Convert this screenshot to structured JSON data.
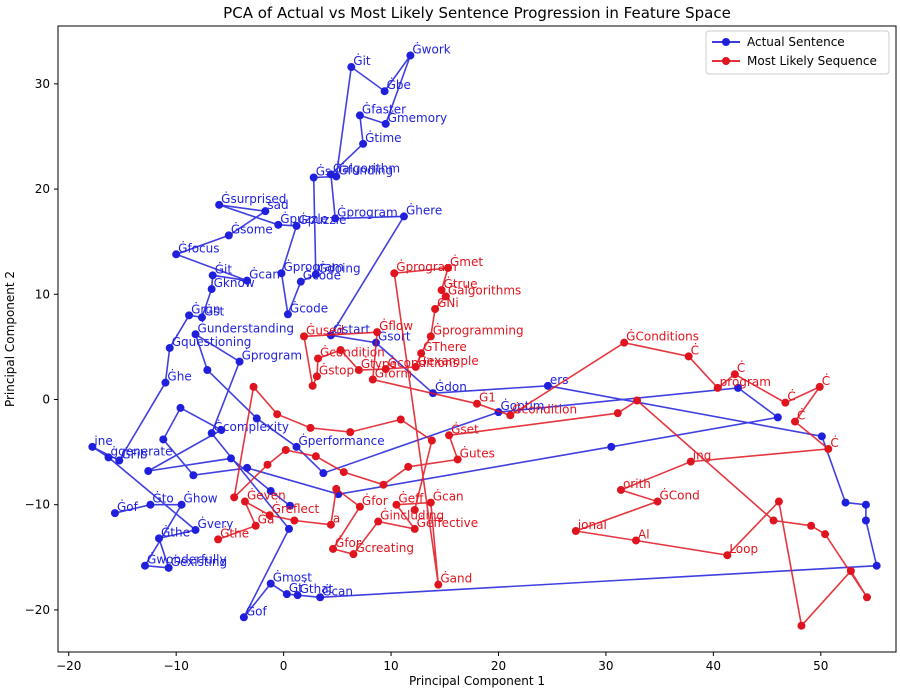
{
  "chart_data": {
    "type": "line",
    "title": "PCA of Actual vs Most Likely Sentence Progression in Feature Space",
    "xlabel": "Principal Component 1",
    "ylabel": "Principal Component 2",
    "xlim": [
      -21,
      57
    ],
    "ylim": [
      -24,
      35.5
    ],
    "xticks": [
      -20,
      -10,
      0,
      10,
      20,
      30,
      40,
      50
    ],
    "yticks": [
      -20,
      -10,
      0,
      10,
      20,
      30
    ],
    "grid": false,
    "legend_position": "top-right",
    "series": [
      {
        "name": "Actual Sentence",
        "color": "#1f1fdc",
        "points": [
          {
            "x": -15.7,
            "y": -10.8,
            "label": "Ġof"
          },
          {
            "x": -12.4,
            "y": -10.0,
            "label": "Ġto"
          },
          {
            "x": -9.5,
            "y": -10.0,
            "label": "Ġhow"
          },
          {
            "x": -12.9,
            "y": -15.8,
            "label": "Ġwonderfully"
          },
          {
            "x": -10.7,
            "y": -16.0,
            "label": "Ġexisting"
          },
          {
            "x": -11.6,
            "y": -13.2,
            "label": "Ġthe"
          },
          {
            "x": -8.2,
            "y": -12.4,
            "label": "Ġvery"
          },
          {
            "x": -16.3,
            "y": -5.5,
            "label": "ġgenerate"
          },
          {
            "x": -17.8,
            "y": -4.5,
            "label": "ine"
          },
          {
            "x": -15.3,
            "y": -5.8,
            "label": "ĠFib"
          },
          {
            "x": -11.0,
            "y": 1.6,
            "label": "Ġhe"
          },
          {
            "x": -10.6,
            "y": 4.9,
            "label": "Ġquestioning"
          },
          {
            "x": -8.8,
            "y": 8.0,
            "label": "Ġrun"
          },
          {
            "x": -7.6,
            "y": 7.8,
            "label": "Ġst"
          },
          {
            "x": -6.7,
            "y": 10.5,
            "label": "Ġknow"
          },
          {
            "x": -6.6,
            "y": 11.8,
            "label": "Ġit"
          },
          {
            "x": -3.4,
            "y": 11.3,
            "label": "Ġcan"
          },
          {
            "x": -10.0,
            "y": 13.8,
            "label": "Ġfocus"
          },
          {
            "x": -5.1,
            "y": 15.6,
            "label": "Ġsome"
          },
          {
            "x": -1.7,
            "y": 17.9,
            "label": "sad"
          },
          {
            "x": -6.0,
            "y": 18.5,
            "label": "Ġsurprised"
          },
          {
            "x": -0.5,
            "y": 16.6,
            "label": "Ġpuzzle"
          },
          {
            "x": 1.2,
            "y": 16.5,
            "label": "Ġpuzzle"
          },
          {
            "x": -0.2,
            "y": 12.0,
            "label": "Ġprogram"
          },
          {
            "x": 0.4,
            "y": 8.1,
            "label": "Ġcode"
          },
          {
            "x": 1.6,
            "y": 11.2,
            "label": "Ġcode"
          },
          {
            "x": 3.0,
            "y": 11.9,
            "label": "Ġdoing"
          },
          {
            "x": 2.8,
            "y": 21.1,
            "label": "Ġs"
          },
          {
            "x": 4.9,
            "y": 21.2,
            "label": "Ġfunding"
          },
          {
            "x": 6.3,
            "y": 31.6,
            "label": "Ġit"
          },
          {
            "x": 9.4,
            "y": 29.3,
            "label": "Ġbe"
          },
          {
            "x": 11.8,
            "y": 32.7,
            "label": "Ġwork"
          },
          {
            "x": 9.5,
            "y": 26.2,
            "label": "Ġmemory"
          },
          {
            "x": 7.1,
            "y": 27.0,
            "label": "Ġfaster"
          },
          {
            "x": 7.4,
            "y": 24.3,
            "label": "Ġtime"
          },
          {
            "x": 4.4,
            "y": 21.4,
            "label": "Ġalgorithm"
          },
          {
            "x": 4.8,
            "y": 17.2,
            "label": "Ġprogram"
          },
          {
            "x": 11.2,
            "y": 17.4,
            "label": "Ġhere"
          },
          {
            "x": 4.4,
            "y": 6.1,
            "label": "Ġstart"
          },
          {
            "x": 8.6,
            "y": 5.4,
            "label": "Ġsort"
          },
          {
            "x": 13.9,
            "y": 0.6,
            "label": "Ġdon"
          },
          {
            "x": 24.6,
            "y": 1.3,
            "label": "ers"
          },
          {
            "x": 50.1,
            "y": -3.5,
            "label": ""
          },
          {
            "x": 52.3,
            "y": -9.8,
            "label": ""
          },
          {
            "x": 54.2,
            "y": -10.0,
            "label": ""
          },
          {
            "x": 54.2,
            "y": -11.5,
            "label": ""
          },
          {
            "x": 55.2,
            "y": -15.8,
            "label": ""
          },
          {
            "x": 3.4,
            "y": -18.8,
            "label": "Ġcan"
          },
          {
            "x": 1.3,
            "y": -18.6,
            "label": "Ġthat"
          },
          {
            "x": 0.3,
            "y": -18.5,
            "label": "Ġt"
          },
          {
            "x": -1.2,
            "y": -17.5,
            "label": "Ġmost"
          },
          {
            "x": -3.7,
            "y": -20.7,
            "label": "Ġof"
          },
          {
            "x": 0.5,
            "y": -12.3,
            "label": ""
          },
          {
            "x": -6.7,
            "y": -3.2,
            "label": "Ġcomplexity"
          },
          {
            "x": -4.1,
            "y": 3.6,
            "label": "Ġprogram"
          },
          {
            "x": -8.2,
            "y": 6.2,
            "label": "Ġunderstanding"
          },
          {
            "x": -7.1,
            "y": 2.8,
            "label": ""
          },
          {
            "x": -2.5,
            "y": -1.8,
            "label": ""
          },
          {
            "x": 1.2,
            "y": -4.5,
            "label": "Ġperformance"
          },
          {
            "x": 3.7,
            "y": -7.0,
            "label": ""
          },
          {
            "x": 20.0,
            "y": -1.2,
            "label": "Ġoptim"
          },
          {
            "x": 42.3,
            "y": 1.1,
            "label": ""
          },
          {
            "x": 46.0,
            "y": -1.7,
            "label": ""
          },
          {
            "x": 30.5,
            "y": -4.5,
            "label": ""
          },
          {
            "x": 5.1,
            "y": -9.0,
            "label": ""
          },
          {
            "x": -3.4,
            "y": -6.5,
            "label": ""
          },
          {
            "x": -8.4,
            "y": -7.2,
            "label": ""
          },
          {
            "x": -11.2,
            "y": -3.8,
            "label": ""
          },
          {
            "x": -9.6,
            "y": -0.8,
            "label": ""
          },
          {
            "x": -5.8,
            "y": -2.9,
            "label": ""
          },
          {
            "x": -12.6,
            "y": -6.8,
            "label": ""
          },
          {
            "x": -4.9,
            "y": -5.6,
            "label": ""
          },
          {
            "x": -1.2,
            "y": -8.7,
            "label": ""
          },
          {
            "x": 0.6,
            "y": -10.1,
            "label": ""
          }
        ]
      },
      {
        "name": "Most Likely Sequence",
        "color": "#e0141e",
        "points": [
          {
            "x": -6.1,
            "y": -13.3,
            "label": "Ġthe"
          },
          {
            "x": -2.6,
            "y": -12.0,
            "label": "Ġa"
          },
          {
            "x": -3.6,
            "y": -9.7,
            "label": "Ġeven"
          },
          {
            "x": -1.3,
            "y": -11.0,
            "label": "Ġreflect"
          },
          {
            "x": 1.0,
            "y": -11.5,
            "label": ""
          },
          {
            "x": 4.4,
            "y": -11.9,
            "label": "a"
          },
          {
            "x": 4.9,
            "y": -8.5,
            "label": ""
          },
          {
            "x": 7.1,
            "y": -10.2,
            "label": "Ġfor"
          },
          {
            "x": 4.6,
            "y": -14.2,
            "label": "Ġfor"
          },
          {
            "x": 6.5,
            "y": -14.7,
            "label": "Ġcreating"
          },
          {
            "x": 8.8,
            "y": -11.6,
            "label": "Ġincluding"
          },
          {
            "x": 12.2,
            "y": -12.3,
            "label": "Ġeffective"
          },
          {
            "x": 10.5,
            "y": -10.0,
            "label": "Ġeff"
          },
          {
            "x": 13.7,
            "y": -9.8,
            "label": "Ġcan"
          },
          {
            "x": 14.4,
            "y": -17.6,
            "label": "Ġand"
          },
          {
            "x": 10.3,
            "y": 12.0,
            "label": "Ġprogram"
          },
          {
            "x": 15.3,
            "y": 12.5,
            "label": "Ġmet"
          },
          {
            "x": 14.7,
            "y": 10.4,
            "label": "Ġtrue"
          },
          {
            "x": 15.1,
            "y": 9.8,
            "label": "Ġalgorithms"
          },
          {
            "x": 14.1,
            "y": 8.6,
            "label": "ĠNi"
          },
          {
            "x": 13.7,
            "y": 6.0,
            "label": "Ġprogramming"
          },
          {
            "x": 12.8,
            "y": 4.4,
            "label": "ĠThere"
          },
          {
            "x": 12.3,
            "y": 3.1,
            "label": "Ġexample"
          },
          {
            "x": 9.5,
            "y": 2.9,
            "label": "Ġconditions"
          },
          {
            "x": 7.0,
            "y": 2.8,
            "label": "Ġtype"
          },
          {
            "x": 5.3,
            "y": 4.7,
            "label": ""
          },
          {
            "x": 3.2,
            "y": 3.9,
            "label": "Ġcondition"
          },
          {
            "x": 3.1,
            "y": 2.2,
            "label": "Ġstop"
          },
          {
            "x": 2.7,
            "y": 1.3,
            "label": ""
          },
          {
            "x": 1.9,
            "y": 6.0,
            "label": "Ġused"
          },
          {
            "x": 8.7,
            "y": 6.4,
            "label": "Ġflow"
          },
          {
            "x": 8.3,
            "y": 1.9,
            "label": "Ġform"
          },
          {
            "x": 18.0,
            "y": -0.4,
            "label": "Ġ1"
          },
          {
            "x": 21.1,
            "y": -1.5,
            "label": "Ġcondition"
          },
          {
            "x": 31.7,
            "y": 5.4,
            "label": "ĠConditions"
          },
          {
            "x": 37.7,
            "y": 4.1,
            "label": "Ċ"
          },
          {
            "x": 40.4,
            "y": 1.1,
            "label": "program"
          },
          {
            "x": 42.0,
            "y": 2.4,
            "label": "Ċ"
          },
          {
            "x": 46.7,
            "y": -0.3,
            "label": "Ċ"
          },
          {
            "x": 49.9,
            "y": 1.2,
            "label": "Ċ"
          },
          {
            "x": 47.6,
            "y": -2.1,
            "label": "Ċ"
          },
          {
            "x": 50.7,
            "y": -4.7,
            "label": "Ċ"
          },
          {
            "x": 37.9,
            "y": -5.9,
            "label": "ing"
          },
          {
            "x": 31.4,
            "y": -8.6,
            "label": "orith"
          },
          {
            "x": 34.8,
            "y": -9.7,
            "label": "ĠCond"
          },
          {
            "x": 27.2,
            "y": -12.5,
            "label": "ional"
          },
          {
            "x": 32.8,
            "y": -13.4,
            "label": "Al"
          },
          {
            "x": 41.3,
            "y": -14.8,
            "label": "Loop"
          },
          {
            "x": 46.1,
            "y": -9.7,
            "label": ""
          },
          {
            "x": 48.2,
            "y": -21.5,
            "label": ""
          },
          {
            "x": 52.8,
            "y": -16.3,
            "label": ""
          },
          {
            "x": 54.3,
            "y": -18.8,
            "label": ""
          },
          {
            "x": 50.4,
            "y": -12.8,
            "label": ""
          },
          {
            "x": 49.1,
            "y": -12.0,
            "label": ""
          },
          {
            "x": 45.6,
            "y": -11.5,
            "label": ""
          },
          {
            "x": 32.9,
            "y": -0.1,
            "label": ""
          },
          {
            "x": 31.1,
            "y": -1.3,
            "label": ""
          },
          {
            "x": 15.4,
            "y": -3.4,
            "label": "Ġset"
          },
          {
            "x": 16.2,
            "y": -5.7,
            "label": "Ġutes"
          },
          {
            "x": 11.6,
            "y": -6.4,
            "label": ""
          },
          {
            "x": 9.3,
            "y": -8.1,
            "label": ""
          },
          {
            "x": 5.6,
            "y": -6.9,
            "label": ""
          },
          {
            "x": 3.0,
            "y": -5.4,
            "label": ""
          },
          {
            "x": 0.2,
            "y": -4.8,
            "label": ""
          },
          {
            "x": -1.5,
            "y": -6.2,
            "label": ""
          },
          {
            "x": -4.6,
            "y": -9.3,
            "label": ""
          },
          {
            "x": -2.8,
            "y": 1.2,
            "label": ""
          },
          {
            "x": -0.6,
            "y": -1.4,
            "label": ""
          },
          {
            "x": 2.5,
            "y": -2.7,
            "label": ""
          },
          {
            "x": 6.2,
            "y": -3.1,
            "label": ""
          },
          {
            "x": 10.9,
            "y": -1.9,
            "label": ""
          },
          {
            "x": 13.8,
            "y": -3.9,
            "label": ""
          },
          {
            "x": 12.2,
            "y": -10.5,
            "label": ""
          }
        ]
      }
    ]
  }
}
